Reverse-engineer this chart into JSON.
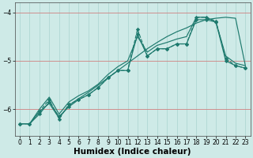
{
  "title": "",
  "xlabel": "Humidex (Indice chaleur)",
  "bg_color": "#ceeae7",
  "line_color": "#1e7a6e",
  "xlim": [
    -0.5,
    23.5
  ],
  "ylim": [
    -6.55,
    -3.8
  ],
  "yticks": [
    -6,
    -5,
    -4
  ],
  "xticks": [
    0,
    1,
    2,
    3,
    4,
    5,
    6,
    7,
    8,
    9,
    10,
    11,
    12,
    13,
    14,
    15,
    16,
    17,
    18,
    19,
    20,
    21,
    22,
    23
  ],
  "lines": [
    {
      "x": [
        0,
        1,
        2,
        3,
        4,
        5,
        6,
        7,
        8,
        9,
        10,
        11,
        12,
        13,
        14,
        15,
        16,
        17,
        18,
        19,
        20,
        21,
        22,
        23
      ],
      "y": [
        -6.3,
        -6.3,
        -6.1,
        -5.85,
        -6.15,
        -5.95,
        -5.8,
        -5.7,
        -5.55,
        -5.35,
        -5.2,
        -5.2,
        -4.45,
        -4.9,
        -4.75,
        -4.75,
        -4.65,
        -4.65,
        -4.15,
        -4.15,
        -4.2,
        -5.0,
        -5.1,
        -5.15
      ],
      "style": "-",
      "marker": "D",
      "markersize": 2.2
    },
    {
      "x": [
        0,
        1,
        2,
        3,
        4,
        5,
        6,
        7,
        8,
        9,
        10,
        11,
        12,
        13,
        14,
        15,
        16,
        17,
        18,
        19,
        20,
        21,
        22,
        23
      ],
      "y": [
        -6.3,
        -6.3,
        -6.05,
        -5.8,
        -6.2,
        -5.9,
        -5.8,
        -5.7,
        -5.55,
        -5.35,
        -5.2,
        -5.2,
        -4.35,
        -4.9,
        -4.75,
        -4.75,
        -4.65,
        -4.65,
        -4.1,
        -4.1,
        -4.18,
        -4.95,
        -5.1,
        -5.15
      ],
      "style": "--",
      "marker": "D",
      "markersize": 2.2
    },
    {
      "x": [
        0,
        1,
        2,
        3,
        4,
        5,
        6,
        7,
        8,
        9,
        10,
        11,
        12,
        13,
        14,
        15,
        16,
        17,
        18,
        19,
        20,
        21,
        22,
        23
      ],
      "y": [
        -6.3,
        -6.3,
        -6.0,
        -5.75,
        -6.1,
        -5.85,
        -5.72,
        -5.62,
        -5.48,
        -5.28,
        -5.12,
        -5.0,
        -4.5,
        -4.82,
        -4.68,
        -4.62,
        -4.55,
        -4.5,
        -4.1,
        -4.1,
        -4.2,
        -4.9,
        -5.05,
        -5.1
      ],
      "style": "-",
      "marker": null,
      "markersize": 0
    },
    {
      "x": [
        0,
        1,
        2,
        3,
        4,
        5,
        6,
        7,
        8,
        9,
        10,
        11,
        12,
        13,
        14,
        15,
        16,
        17,
        18,
        19,
        20,
        21,
        22,
        23
      ],
      "y": [
        -6.3,
        -6.3,
        -6.05,
        -5.88,
        -6.18,
        -5.92,
        -5.78,
        -5.65,
        -5.5,
        -5.35,
        -5.2,
        -5.05,
        -4.9,
        -4.75,
        -4.62,
        -4.5,
        -4.4,
        -4.32,
        -4.22,
        -4.15,
        -4.12,
        -4.1,
        -4.12,
        -5.1
      ],
      "style": "-",
      "marker": null,
      "markersize": 0
    }
  ],
  "hgrid_color": "#d08080",
  "vgrid_color": "#aad4d0",
  "tick_fontsize": 5.5,
  "xlabel_fontsize": 7.5
}
